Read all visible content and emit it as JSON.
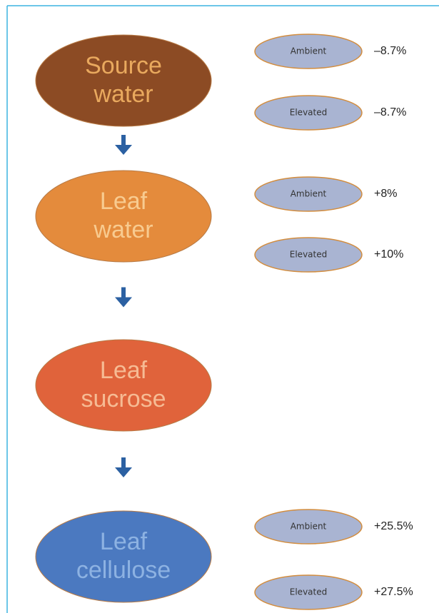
{
  "nodes": [
    {
      "lines": [
        "Source",
        "water"
      ],
      "conditions": [
        {
          "label": "Ambient",
          "value": "–8.7%"
        },
        {
          "label": "Elevated",
          "value": "–8.7%"
        }
      ]
    },
    {
      "lines": [
        "Leaf",
        "water"
      ],
      "conditions": [
        {
          "label": "Ambient",
          "value": "+8%"
        },
        {
          "label": "Elevated",
          "value": "+10%"
        }
      ]
    },
    {
      "lines": [
        "Leaf",
        "sucrose"
      ],
      "conditions": []
    },
    {
      "lines": [
        "Leaf",
        "cellulose"
      ],
      "conditions": [
        {
          "label": "Ambient",
          "value": "+25.5%"
        },
        {
          "label": "Elevated",
          "value": "+27.5%"
        }
      ]
    }
  ]
}
